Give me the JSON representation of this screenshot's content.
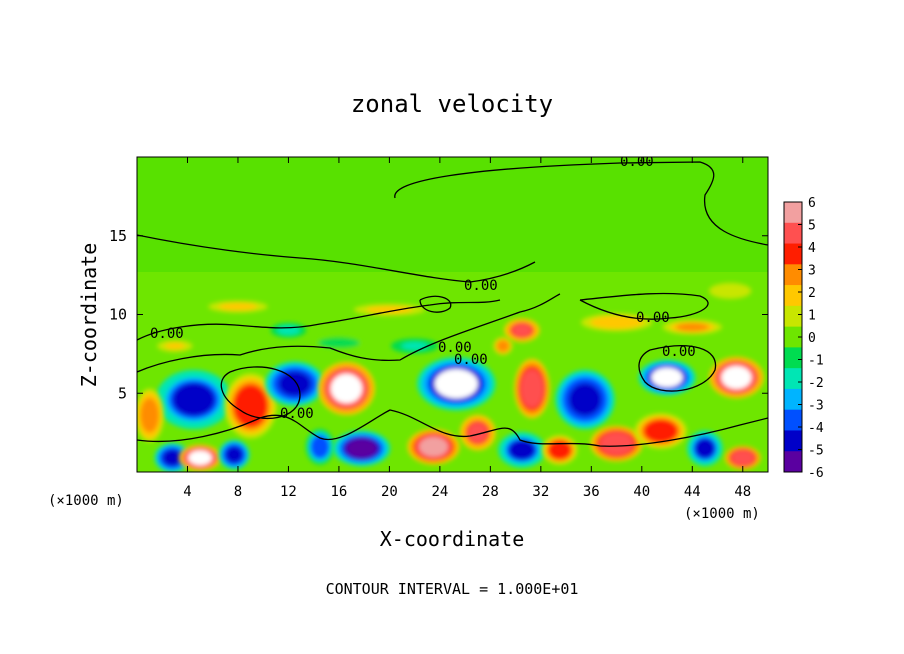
{
  "chart_data": {
    "type": "heatmap",
    "title": "zonal velocity",
    "xlabel": "X-coordinate",
    "ylabel": "Z-coordinate",
    "x_unit_note_left": "(×1000 m)",
    "x_unit_note_right": "(×1000 m)",
    "footer": "CONTOUR INTERVAL = 1.000E+01",
    "xlim": [
      0,
      50
    ],
    "ylim": [
      0,
      20
    ],
    "x_ticks": [
      4,
      8,
      12,
      16,
      20,
      24,
      28,
      32,
      36,
      40,
      44,
      48
    ],
    "y_ticks": [
      5,
      10,
      15
    ],
    "colorbar": {
      "ticks": [
        6,
        5,
        4,
        3,
        2,
        1,
        0,
        -1,
        -2,
        -3,
        -4,
        -5,
        -6
      ],
      "colors": [
        "#f2a0a0",
        "#ff5050",
        "#ff1e00",
        "#ff8c00",
        "#ffc800",
        "#c8e600",
        "#6ee600",
        "#00dc50",
        "#00e6b4",
        "#00b4ff",
        "#0050ff",
        "#0000c8",
        "#5a00a0"
      ]
    },
    "contour_labels": [
      "0.00",
      "0.00",
      "0.00",
      "0.00",
      "0.00",
      "0.00",
      "0.00",
      "0.00"
    ],
    "blobs": [
      {
        "x": 4.5,
        "z": 4.6,
        "rx": 3.2,
        "rz": 2.0,
        "v": -4.5
      },
      {
        "x": 9.0,
        "z": 4.2,
        "rx": 2.2,
        "rz": 2.2,
        "v": 4.0
      },
      {
        "x": 12.5,
        "z": 5.6,
        "rx": 2.5,
        "rz": 1.5,
        "v": -5.0
      },
      {
        "x": 16.6,
        "z": 5.3,
        "rx": 2.4,
        "rz": 1.8,
        "v": 6.5
      },
      {
        "x": 25.3,
        "z": 5.6,
        "rx": 3.3,
        "rz": 1.8,
        "v": -6.5
      },
      {
        "x": 31.3,
        "z": 5.3,
        "rx": 1.5,
        "rz": 2.0,
        "v": 5.0
      },
      {
        "x": 35.5,
        "z": 4.6,
        "rx": 2.5,
        "rz": 2.0,
        "v": -4.8
      },
      {
        "x": 42.0,
        "z": 6.0,
        "rx": 2.4,
        "rz": 1.2,
        "v": -6.5
      },
      {
        "x": 47.5,
        "z": 6.0,
        "rx": 2.3,
        "rz": 1.4,
        "v": 6.5
      },
      {
        "x": 1.0,
        "z": 3.6,
        "rx": 1.2,
        "rz": 1.8,
        "v": 3.0
      },
      {
        "x": 2.8,
        "z": 0.9,
        "rx": 1.5,
        "rz": 1.0,
        "v": -5.0
      },
      {
        "x": 5.0,
        "z": 0.9,
        "rx": 1.8,
        "rz": 0.9,
        "v": 6.5
      },
      {
        "x": 7.7,
        "z": 1.1,
        "rx": 1.3,
        "rz": 1.0,
        "v": -5.0
      },
      {
        "x": 14.5,
        "z": 1.6,
        "rx": 1.2,
        "rz": 1.2,
        "v": -4.0
      },
      {
        "x": 17.8,
        "z": 1.5,
        "rx": 2.4,
        "rz": 1.2,
        "v": -5.5
      },
      {
        "x": 23.5,
        "z": 1.6,
        "rx": 2.2,
        "rz": 1.2,
        "v": 5.5
      },
      {
        "x": 27.0,
        "z": 2.5,
        "rx": 1.5,
        "rz": 1.2,
        "v": 4.5
      },
      {
        "x": 30.5,
        "z": 1.4,
        "rx": 2.0,
        "rz": 1.2,
        "v": -4.5
      },
      {
        "x": 33.5,
        "z": 1.4,
        "rx": 1.5,
        "rz": 1.0,
        "v": 4.0
      },
      {
        "x": 38.0,
        "z": 1.8,
        "rx": 2.2,
        "rz": 1.2,
        "v": 5.0
      },
      {
        "x": 41.5,
        "z": 2.6,
        "rx": 2.2,
        "rz": 1.2,
        "v": 4.0
      },
      {
        "x": 45.0,
        "z": 1.5,
        "rx": 1.5,
        "rz": 1.2,
        "v": -4.5
      },
      {
        "x": 48.0,
        "z": 0.9,
        "rx": 1.5,
        "rz": 0.8,
        "v": 5.0
      },
      {
        "x": 30.5,
        "z": 9.0,
        "rx": 1.5,
        "rz": 0.8,
        "v": 4.5
      },
      {
        "x": 29.0,
        "z": 8.0,
        "rx": 0.8,
        "rz": 0.6,
        "v": 3.0
      },
      {
        "x": 12.0,
        "z": 9.0,
        "rx": 1.5,
        "rz": 0.5,
        "v": -2.0
      },
      {
        "x": 8.0,
        "z": 10.5,
        "rx": 2.5,
        "rz": 0.4,
        "v": 1.8
      },
      {
        "x": 20.0,
        "z": 10.3,
        "rx": 3.0,
        "rz": 0.4,
        "v": 1.8
      },
      {
        "x": 38.0,
        "z": 9.5,
        "rx": 3.0,
        "rz": 0.6,
        "v": 2.0
      },
      {
        "x": 44.0,
        "z": 9.2,
        "rx": 2.5,
        "rz": 0.5,
        "v": 2.5
      },
      {
        "x": 3.0,
        "z": 8.0,
        "rx": 1.5,
        "rz": 0.4,
        "v": 1.5
      },
      {
        "x": 22.0,
        "z": 8.0,
        "rx": 2.0,
        "rz": 0.5,
        "v": -1.5
      },
      {
        "x": 16.0,
        "z": 8.2,
        "rx": 2.0,
        "rz": 0.4,
        "v": -1.2
      },
      {
        "x": 47.0,
        "z": 11.5,
        "rx": 2.0,
        "rz": 0.6,
        "v": 1.2
      }
    ]
  }
}
